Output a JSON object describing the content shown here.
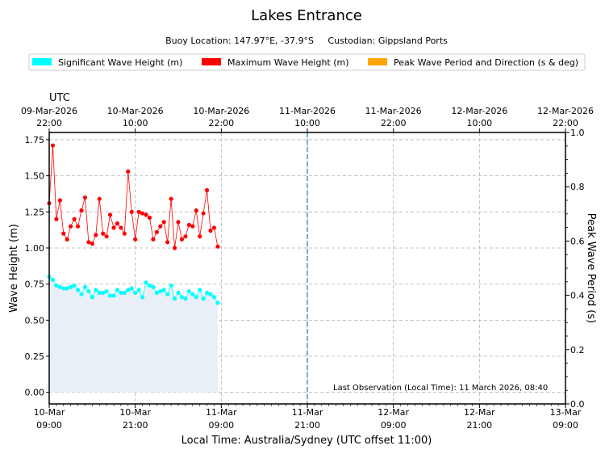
{
  "colors": {
    "significant": "#00ffff",
    "maximum": "#ff0000",
    "peak": "#ffa500",
    "fill": "#e8eff7",
    "grid": "#b0b0b0",
    "now_line": "#1f77b4"
  },
  "chart_data": {
    "type": "line",
    "title": "Lakes Entrance",
    "subtitle": "Buoy Location: 147.97°E, -37.9°S     Custodian: Gippsland Ports",
    "legend": [
      {
        "key": "significant",
        "label": "Significant Wave Height (m)"
      },
      {
        "key": "maximum",
        "label": "Maximum Wave Height (m)"
      },
      {
        "key": "peak",
        "label": "Peak Wave Period and Direction (s & deg)"
      }
    ],
    "xlabel": "Local Time: Australia/Sydney (UTC offset 11:00)",
    "ylabel": "Wave Height (m)",
    "y2label": "Peak Wave Period (s)",
    "top_axis_label": "UTC",
    "xlim_hours": [
      0,
      72
    ],
    "ylim": [
      -0.08,
      1.8
    ],
    "y2lim": [
      0,
      1.0
    ],
    "yticks": [
      0.0,
      0.25,
      0.5,
      0.75,
      1.0,
      1.25,
      1.5,
      1.75
    ],
    "ytick_labels": [
      "0.00",
      "0.25",
      "0.50",
      "0.75",
      "1.00",
      "1.25",
      "1.50",
      "1.75"
    ],
    "y2ticks": [
      0.0,
      0.2,
      0.4,
      0.6,
      0.8,
      1.0
    ],
    "y2tick_labels": [
      "0.0",
      "0.2",
      "0.4",
      "0.6",
      "0.8",
      "1.0"
    ],
    "xticks_hours": [
      0,
      12,
      24,
      36,
      48,
      60,
      72
    ],
    "bottom_tick_labels": [
      [
        "10-Mar",
        "09:00"
      ],
      [
        "10-Mar",
        "21:00"
      ],
      [
        "11-Mar",
        "09:00"
      ],
      [
        "11-Mar",
        "21:00"
      ],
      [
        "12-Mar",
        "09:00"
      ],
      [
        "12-Mar",
        "21:00"
      ],
      [
        "13-Mar",
        "09:00"
      ]
    ],
    "top_tick_labels": [
      [
        "09-Mar-2026",
        "22:00"
      ],
      [
        "10-Mar-2026",
        "10:00"
      ],
      [
        "10-Mar-2026",
        "22:00"
      ],
      [
        "11-Mar-2026",
        "10:00"
      ],
      [
        "11-Mar-2026",
        "22:00"
      ],
      [
        "12-Mar-2026",
        "10:00"
      ],
      [
        "12-Mar-2026",
        "22:00"
      ]
    ],
    "now_line_hour": 36,
    "annotation": "Last Observation (Local Time): 11 March 2026, 08:40",
    "series": [
      {
        "name": "Maximum Wave Height (m)",
        "color_key": "maximum",
        "x_start": 0,
        "x_step": 0.5,
        "values": [
          1.31,
          1.71,
          1.2,
          1.33,
          1.1,
          1.06,
          1.15,
          1.2,
          1.15,
          1.26,
          1.35,
          1.04,
          1.03,
          1.09,
          1.34,
          1.1,
          1.08,
          1.23,
          1.14,
          1.17,
          1.14,
          1.1,
          1.53,
          1.25,
          1.06,
          1.25,
          1.24,
          1.23,
          1.21,
          1.06,
          1.11,
          1.15,
          1.18,
          1.04,
          1.34,
          1.0,
          1.18,
          1.06,
          1.08,
          1.16,
          1.15,
          1.26,
          1.08,
          1.24,
          1.4,
          1.12,
          1.14,
          1.01
        ]
      },
      {
        "name": "Significant Wave Height (m)",
        "color_key": "significant",
        "x_start": 0,
        "x_step": 0.5,
        "values": [
          0.8,
          0.78,
          0.74,
          0.73,
          0.72,
          0.72,
          0.73,
          0.74,
          0.71,
          0.68,
          0.73,
          0.7,
          0.66,
          0.71,
          0.69,
          0.69,
          0.7,
          0.67,
          0.67,
          0.71,
          0.69,
          0.69,
          0.71,
          0.72,
          0.69,
          0.71,
          0.66,
          0.76,
          0.74,
          0.73,
          0.69,
          0.7,
          0.71,
          0.68,
          0.74,
          0.65,
          0.69,
          0.66,
          0.65,
          0.7,
          0.68,
          0.66,
          0.71,
          0.65,
          0.69,
          0.68,
          0.66,
          0.62
        ]
      }
    ]
  }
}
